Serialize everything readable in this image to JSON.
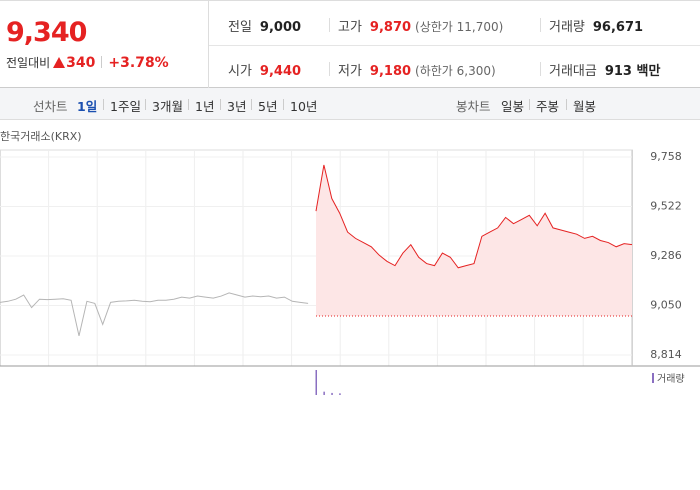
{
  "header": {
    "price": "9,340",
    "change_label": "전일대비",
    "change": "340",
    "change_rate": "+3.78%",
    "stats": [
      {
        "label": "전일",
        "value": "9,000"
      },
      {
        "label": "고가",
        "value": "9,870",
        "note": "(상한가 11,700)"
      },
      {
        "label": "거래량",
        "value": "96,671"
      },
      {
        "label": "시가",
        "value": "9,440"
      },
      {
        "label": "저가",
        "value": "9,180",
        "note": "(하한가 6,300)"
      },
      {
        "label": "거래대금",
        "value": "913 백만"
      }
    ]
  },
  "tabs": {
    "line_label": "선차트",
    "line_periods": [
      "1일",
      "1주일",
      "3개월",
      "1년",
      "3년",
      "5년",
      "10년"
    ],
    "candle_label": "봉차트",
    "candle_periods": [
      "일봉",
      "주봉",
      "월봉"
    ]
  },
  "source": "한국거래소(KRX)",
  "chart_data": [
    {
      "type": "line",
      "xlim": [
        0,
        80
      ],
      "ylim": [
        8814,
        9758
      ],
      "yticks": [
        {
          "value": 9758,
          "label": "9,758"
        },
        {
          "value": 9522,
          "label": "9,522"
        },
        {
          "value": 9286,
          "label": "9,286"
        },
        {
          "value": 9050,
          "label": "9,050"
        },
        {
          "value": 8814,
          "label": "8,814"
        }
      ],
      "baseline": 9000,
      "x": [
        0,
        1,
        2,
        3,
        4,
        5,
        6,
        7,
        8,
        9,
        10,
        11,
        12,
        13,
        14,
        15,
        16,
        17,
        18,
        19,
        20,
        21,
        22,
        23,
        24,
        25,
        26,
        27,
        28,
        29,
        30,
        31,
        32,
        33,
        34,
        35,
        36,
        37,
        38,
        39,
        40,
        41,
        42,
        43,
        44,
        45,
        46,
        47,
        48,
        49,
        50,
        51,
        52,
        53,
        54,
        55,
        56,
        57,
        58,
        59,
        60,
        61,
        62,
        63,
        64,
        65,
        66,
        67,
        68,
        69,
        70,
        71,
        72,
        73,
        74,
        75,
        76,
        77,
        78,
        79,
        80
      ],
      "series": [
        {
          "color": "#b5b5b5",
          "values": [
            9065,
            9070,
            9080,
            9100,
            9040,
            9080,
            9078,
            9080,
            9082,
            9075,
            8905,
            9070,
            9060,
            8960,
            9065,
            9070,
            9072,
            9075,
            9070,
            9068,
            9075,
            9075,
            9080,
            9090,
            9085,
            9095,
            9090,
            9085,
            9095,
            9110,
            9100,
            9090,
            9095,
            9092,
            9095,
            9085,
            9090,
            9070,
            9065,
            9060,
            null,
            null,
            null,
            null,
            null,
            null,
            null,
            null,
            null,
            null,
            null,
            null,
            null,
            null,
            null,
            null,
            null,
            null,
            null,
            null,
            null,
            null,
            null,
            null,
            null,
            null,
            null,
            null,
            null,
            null,
            null,
            null,
            null,
            null,
            null,
            null,
            null,
            null,
            null,
            null,
            null
          ]
        },
        {
          "color": "#e52222",
          "fill": "#fde6e6",
          "values": [
            null,
            null,
            null,
            null,
            null,
            null,
            null,
            null,
            null,
            null,
            null,
            null,
            null,
            null,
            null,
            null,
            null,
            null,
            null,
            null,
            null,
            null,
            null,
            null,
            null,
            null,
            null,
            null,
            null,
            null,
            null,
            null,
            null,
            null,
            null,
            null,
            null,
            null,
            null,
            null,
            9500,
            9720,
            9560,
            9490,
            9400,
            9370,
            9350,
            9330,
            9290,
            9260,
            9240,
            9300,
            9340,
            9280,
            9250,
            9240,
            9300,
            9280,
            9230,
            9240,
            9250,
            9380,
            9400,
            9420,
            9470,
            9440,
            9460,
            9480,
            9430,
            9490,
            9420,
            9410,
            9400,
            9390,
            9370,
            9380,
            9360,
            9350,
            9330,
            9345,
            9340
          ]
        }
      ]
    },
    {
      "type": "bar",
      "xlim": [
        0,
        80
      ],
      "ylim": [
        0,
        60000
      ],
      "x": [
        40,
        41,
        42,
        43
      ],
      "series": [
        {
          "name": "거래량",
          "color": "#8a6fc1",
          "values": [
            60000,
            8000,
            5000,
            4000
          ]
        }
      ]
    }
  ]
}
